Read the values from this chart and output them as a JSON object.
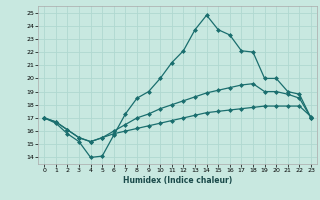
{
  "xlabel": "Humidex (Indice chaleur)",
  "bg_color": "#c8e8e0",
  "grid_color": "#b0d8d0",
  "line_color": "#1a6e6e",
  "xlim": [
    -0.5,
    23.5
  ],
  "ylim": [
    13.5,
    25.5
  ],
  "xticks": [
    0,
    1,
    2,
    3,
    4,
    5,
    6,
    7,
    8,
    9,
    10,
    11,
    12,
    13,
    14,
    15,
    16,
    17,
    18,
    19,
    20,
    21,
    22,
    23
  ],
  "yticks": [
    14,
    15,
    16,
    17,
    18,
    19,
    20,
    21,
    22,
    23,
    24,
    25
  ],
  "line1_x": [
    0,
    1,
    2,
    3,
    4,
    5,
    6,
    7,
    8,
    9,
    10,
    11,
    12,
    13,
    14,
    15,
    16,
    17,
    18,
    19,
    20,
    21,
    22,
    23
  ],
  "line1_y": [
    17.0,
    16.6,
    15.8,
    15.2,
    14.0,
    14.1,
    15.7,
    17.3,
    18.5,
    19.0,
    20.0,
    21.2,
    22.1,
    23.7,
    24.8,
    23.7,
    23.3,
    22.1,
    22.0,
    20.0,
    20.0,
    19.0,
    18.8,
    17.0
  ],
  "line2_x": [
    0,
    1,
    2,
    3,
    4,
    5,
    6,
    7,
    8,
    9,
    10,
    11,
    12,
    13,
    14,
    15,
    16,
    17,
    18,
    19,
    20,
    21,
    22,
    23
  ],
  "line2_y": [
    17.0,
    16.7,
    16.1,
    15.5,
    15.2,
    15.5,
    16.0,
    16.5,
    17.0,
    17.3,
    17.7,
    18.0,
    18.3,
    18.6,
    18.9,
    19.1,
    19.3,
    19.5,
    19.6,
    19.0,
    19.0,
    18.8,
    18.5,
    17.0
  ],
  "line3_x": [
    0,
    1,
    2,
    3,
    4,
    5,
    6,
    7,
    8,
    9,
    10,
    11,
    12,
    13,
    14,
    15,
    16,
    17,
    18,
    19,
    20,
    21,
    22,
    23
  ],
  "line3_y": [
    17.0,
    16.7,
    16.1,
    15.5,
    15.2,
    15.5,
    15.8,
    16.0,
    16.2,
    16.4,
    16.6,
    16.8,
    17.0,
    17.2,
    17.4,
    17.5,
    17.6,
    17.7,
    17.8,
    17.9,
    17.9,
    17.9,
    17.9,
    17.1
  ],
  "marker": "D",
  "marker_size": 2.0,
  "line_width": 0.9
}
